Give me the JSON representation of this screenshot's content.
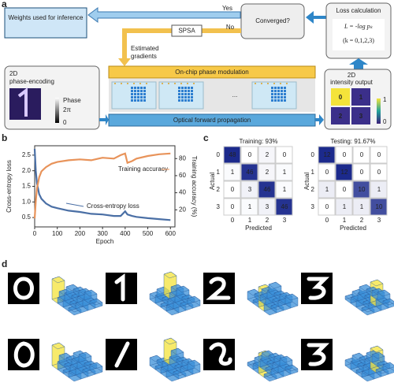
{
  "panels": [
    "a",
    "b",
    "c",
    "d"
  ],
  "diagram": {
    "weights_box": "Weights used for inference",
    "yes": "Yes",
    "no": "No",
    "spsa": "SPSA",
    "converged": "Converged?",
    "loss_title": "Loss calculation",
    "loss_formula": "L = -log pₖ",
    "loss_k": "(k = 0,1,2,3)",
    "gradients": [
      "Estimated",
      "gradients"
    ],
    "modulation": "On-chip phase modulation",
    "encoding": [
      "2D",
      "phase-encoding"
    ],
    "phase": "Phase",
    "phase_max": "2π",
    "phase_min": "0",
    "ellipsis": "...",
    "output": [
      "2D",
      "intensity output"
    ],
    "output_digits": [
      "0",
      "1",
      "2",
      "3"
    ],
    "output_max": "1",
    "output_min": "0",
    "propagation": "Optical forward propagation"
  },
  "chart_data": [
    {
      "type": "line",
      "xlabel": "Epoch",
      "ylabel": "Cross-entropy loss",
      "y2label": "Training accuracy (%)",
      "x": [
        0,
        5,
        10,
        20,
        30,
        50,
        75,
        100,
        150,
        200,
        250,
        300,
        350,
        380,
        400,
        410,
        430,
        450,
        500,
        550,
        600
      ],
      "series": [
        {
          "name": "Cross-entropy loss",
          "color": "#4a6fa5",
          "values": [
            2.7,
            2.0,
            1.6,
            1.25,
            1.1,
            0.95,
            0.85,
            0.8,
            0.72,
            0.68,
            0.62,
            0.6,
            0.55,
            0.55,
            0.7,
            0.6,
            0.55,
            0.52,
            0.48,
            0.45,
            0.42
          ]
        },
        {
          "name": "Training accuracy",
          "color": "#e8935a",
          "axis": "y2",
          "values": [
            10,
            30,
            45,
            58,
            65,
            70,
            74,
            76,
            78,
            79,
            78,
            81,
            80,
            84,
            86,
            75,
            77,
            80,
            83,
            85,
            86
          ]
        }
      ],
      "xlim": [
        0,
        620
      ],
      "xticks": [
        0,
        100,
        200,
        300,
        400,
        500,
        600
      ],
      "ylim": [
        0.2,
        2.8
      ],
      "yticks": [
        0.5,
        {
          "value": 1,
          "label": "1.0"
        },
        1.5,
        {
          "value": 2,
          "label": "2.0"
        },
        2.5
      ],
      "y2lim": [
        0,
        95
      ],
      "y2ticks": [
        20,
        40,
        60,
        80
      ]
    },
    {
      "type": "heatmap",
      "title": "Training: 93%",
      "xlabel": "Predicted",
      "ylabel": "Actual",
      "categories": [
        "0",
        "1",
        "2",
        "3"
      ],
      "color": "#1c2a8c",
      "values": [
        [
          48,
          0,
          2,
          0
        ],
        [
          1,
          46,
          2,
          1
        ],
        [
          0,
          3,
          46,
          1
        ],
        [
          0,
          1,
          3,
          46
        ]
      ]
    },
    {
      "type": "heatmap",
      "title": "Testing: 91.67%",
      "xlabel": "Predicted",
      "ylabel": "Actual",
      "categories": [
        "0",
        "1",
        "2",
        "3"
      ],
      "color": "#1c2a8c",
      "values": [
        [
          12,
          0,
          0,
          0
        ],
        [
          0,
          12,
          0,
          0
        ],
        [
          1,
          0,
          10,
          1
        ],
        [
          0,
          1,
          1,
          10
        ]
      ]
    }
  ]
}
